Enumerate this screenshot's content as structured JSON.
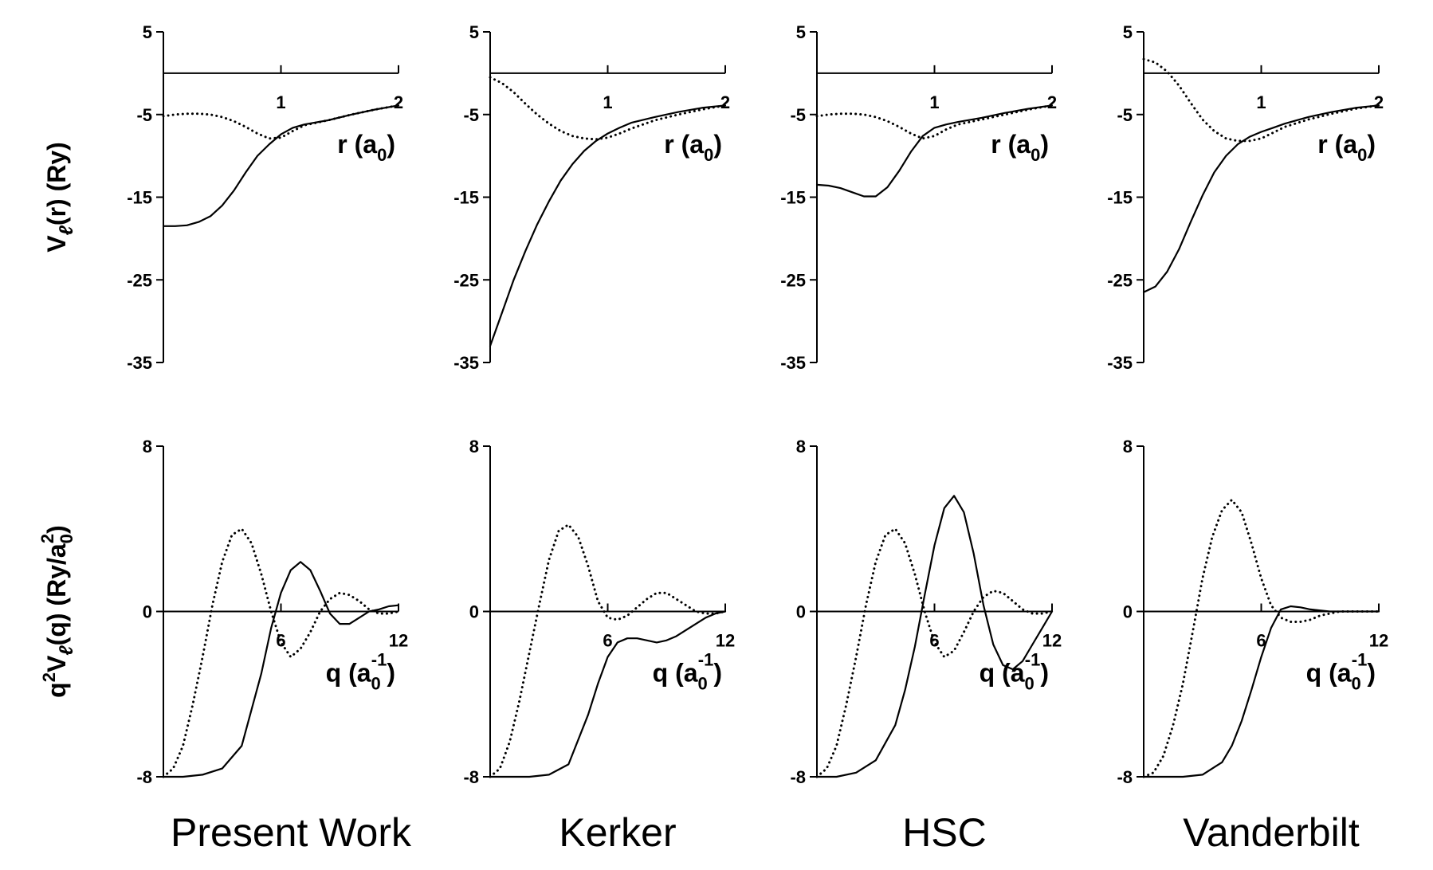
{
  "chart_data": [
    {
      "type": "line",
      "title": "Present Work",
      "top": {
        "xlim": [
          0,
          2
        ],
        "ylim": [
          -35,
          5
        ],
        "xticks": [
          "1",
          "2"
        ],
        "yticks": [
          "5",
          "-5",
          "-15",
          "-25",
          "-35"
        ],
        "xlabel": {
          "main": "r (a",
          "sub": "0",
          "close": ")"
        },
        "ylabel": {
          "p1": "V",
          "sub": "ℓ",
          "p2": "(r) (Ry)"
        },
        "series": [
          {
            "style": "solid",
            "x": [
              0,
              0.1,
              0.2,
              0.3,
              0.4,
              0.5,
              0.6,
              0.7,
              0.8,
              0.9,
              1.0,
              1.1,
              1.2,
              1.4,
              1.6,
              1.8,
              2.0
            ],
            "y": [
              -18.5,
              -18.5,
              -18.4,
              -18.0,
              -17.3,
              -16.0,
              -14.2,
              -12.0,
              -10.0,
              -8.6,
              -7.4,
              -6.6,
              -6.2,
              -5.7,
              -5.0,
              -4.4,
              -3.9
            ]
          },
          {
            "style": "dotted",
            "x": [
              0,
              0.1,
              0.2,
              0.3,
              0.4,
              0.5,
              0.6,
              0.7,
              0.8,
              0.9,
              1.0,
              1.1,
              1.2,
              1.4,
              1.6,
              1.8,
              2.0
            ],
            "y": [
              -5.2,
              -5.0,
              -4.9,
              -4.9,
              -5.0,
              -5.3,
              -5.8,
              -6.5,
              -7.3,
              -7.9,
              -7.8,
              -7.0,
              -6.3,
              -5.7,
              -5.0,
              -4.4,
              -3.9
            ]
          }
        ]
      },
      "bottom": {
        "xlim": [
          0,
          12
        ],
        "ylim": [
          -8,
          8
        ],
        "xticks": [
          "6",
          "12"
        ],
        "yticks": [
          "8",
          "0",
          "-8"
        ],
        "xlabel": {
          "main": "q (a",
          "sub": "0",
          "sup": "-1",
          "close": ")"
        },
        "ylabel": {
          "p1": "q",
          "sup1": "2",
          "p2": "V",
          "sub1": "ℓ",
          "p3": "(q)  (Ry/a",
          "sub2": "0",
          "sup2": "2",
          "p4": ")"
        },
        "series": [
          {
            "style": "solid",
            "x": [
              0,
              1,
              2,
              3,
              4,
              5,
              5.5,
              6,
              6.5,
              7,
              7.5,
              8,
              8.5,
              9,
              9.5,
              10,
              10.5,
              11,
              11.5,
              12
            ],
            "y": [
              -8.0,
              -8.0,
              -7.9,
              -7.6,
              -6.5,
              -3.0,
              -0.8,
              0.9,
              2.0,
              2.4,
              2.0,
              1.0,
              -0.1,
              -0.6,
              -0.6,
              -0.3,
              0,
              0.1,
              0.25,
              0.3
            ]
          },
          {
            "style": "dotted",
            "x": [
              0,
              0.5,
              1,
              1.5,
              2,
              2.5,
              3,
              3.5,
              4,
              4.5,
              5,
              5.5,
              6,
              6.5,
              7,
              7.5,
              8,
              8.5,
              9,
              9.5,
              10,
              10.5,
              11,
              11.5,
              12
            ],
            "y": [
              -8.0,
              -7.6,
              -6.5,
              -4.5,
              -2.2,
              0.3,
              2.4,
              3.7,
              4.0,
              3.3,
              1.8,
              0,
              -1.5,
              -2.2,
              -1.8,
              -1.0,
              0,
              0.6,
              0.9,
              0.8,
              0.5,
              0.1,
              -0.1,
              -0.1,
              0
            ]
          }
        ]
      }
    },
    {
      "type": "line",
      "title": "Kerker",
      "top": {
        "xlim": [
          0,
          2
        ],
        "ylim": [
          -35,
          5
        ],
        "xticks": [
          "1",
          "2"
        ],
        "yticks": [
          "5",
          "-5",
          "-15",
          "-25",
          "-35"
        ],
        "xlabel": {
          "main": "r (a",
          "sub": "0",
          "close": ")"
        },
        "series": [
          {
            "style": "solid",
            "x": [
              0,
              0.1,
              0.2,
              0.3,
              0.4,
              0.5,
              0.6,
              0.7,
              0.8,
              0.9,
              1.0,
              1.1,
              1.2,
              1.4,
              1.6,
              1.8,
              2.0
            ],
            "y": [
              -33.0,
              -29.0,
              -25.0,
              -21.5,
              -18.3,
              -15.5,
              -13.0,
              -11.0,
              -9.4,
              -8.2,
              -7.3,
              -6.6,
              -6.0,
              -5.3,
              -4.7,
              -4.2,
              -3.9
            ]
          },
          {
            "style": "dotted",
            "x": [
              0,
              0.1,
              0.2,
              0.3,
              0.4,
              0.5,
              0.6,
              0.7,
              0.8,
              0.9,
              1.0,
              1.1,
              1.2,
              1.4,
              1.6,
              1.8,
              2.0
            ],
            "y": [
              -0.5,
              -1.2,
              -2.3,
              -3.7,
              -5.0,
              -6.1,
              -7.0,
              -7.6,
              -7.9,
              -8.0,
              -7.8,
              -7.3,
              -6.7,
              -5.7,
              -5.0,
              -4.4,
              -3.9
            ]
          }
        ]
      },
      "bottom": {
        "xlim": [
          0,
          12
        ],
        "ylim": [
          -8,
          8
        ],
        "xticks": [
          "6",
          "12"
        ],
        "yticks": [
          "8",
          "0",
          "-8"
        ],
        "xlabel": {
          "main": "q (a",
          "sub": "0",
          "sup": "-1",
          "close": ")"
        },
        "series": [
          {
            "style": "solid",
            "x": [
              0,
              1,
              2,
              3,
              4,
              5,
              5.5,
              6,
              6.5,
              7,
              7.5,
              8,
              8.5,
              9,
              9.5,
              10,
              10.5,
              11,
              11.5,
              12
            ],
            "y": [
              -8.0,
              -8.0,
              -8.0,
              -7.9,
              -7.4,
              -5.0,
              -3.5,
              -2.2,
              -1.5,
              -1.3,
              -1.3,
              -1.4,
              -1.5,
              -1.4,
              -1.2,
              -0.9,
              -0.6,
              -0.3,
              -0.1,
              0
            ]
          },
          {
            "style": "dotted",
            "x": [
              0,
              0.5,
              1,
              1.5,
              2,
              2.5,
              3,
              3.5,
              4,
              4.5,
              5,
              5.5,
              6,
              6.5,
              7,
              7.5,
              8,
              8.5,
              9,
              9.5,
              10,
              10.5,
              11,
              11.5,
              12
            ],
            "y": [
              -8.0,
              -7.6,
              -6.3,
              -4.3,
              -2.0,
              0.3,
              2.5,
              3.9,
              4.2,
              3.6,
              2.2,
              0.5,
              -0.3,
              -0.4,
              -0.2,
              0.2,
              0.6,
              0.9,
              0.9,
              0.6,
              0.3,
              0,
              -0.1,
              -0.1,
              0
            ]
          }
        ]
      }
    },
    {
      "type": "line",
      "title": "HSC",
      "top": {
        "xlim": [
          0,
          2
        ],
        "ylim": [
          -35,
          5
        ],
        "xticks": [
          "1",
          "2"
        ],
        "yticks": [
          "5",
          "-5",
          "-15",
          "-25",
          "-35"
        ],
        "xlabel": {
          "main": "r (a",
          "sub": "0",
          "close": ")"
        },
        "series": [
          {
            "style": "solid",
            "x": [
              0,
              0.1,
              0.2,
              0.3,
              0.4,
              0.5,
              0.6,
              0.7,
              0.8,
              0.9,
              1.0,
              1.1,
              1.2,
              1.4,
              1.6,
              1.8,
              2.0
            ],
            "y": [
              -13.5,
              -13.6,
              -13.9,
              -14.4,
              -14.9,
              -14.9,
              -13.8,
              -11.8,
              -9.5,
              -7.6,
              -6.6,
              -6.2,
              -5.9,
              -5.4,
              -4.8,
              -4.3,
              -3.9
            ]
          },
          {
            "style": "dotted",
            "x": [
              0,
              0.1,
              0.2,
              0.3,
              0.4,
              0.5,
              0.6,
              0.7,
              0.8,
              0.9,
              1.0,
              1.1,
              1.2,
              1.4,
              1.6,
              1.8,
              2.0
            ],
            "y": [
              -5.2,
              -5.0,
              -4.9,
              -4.9,
              -5.0,
              -5.3,
              -5.8,
              -6.5,
              -7.3,
              -7.9,
              -7.6,
              -6.8,
              -6.2,
              -5.6,
              -5.0,
              -4.4,
              -3.9
            ]
          }
        ]
      },
      "bottom": {
        "xlim": [
          0,
          12
        ],
        "ylim": [
          -8,
          8
        ],
        "xticks": [
          "6",
          "12"
        ],
        "yticks": [
          "8",
          "0",
          "-8"
        ],
        "xlabel": {
          "main": "q (a",
          "sub": "0",
          "sup": "-1",
          "close": ")"
        },
        "series": [
          {
            "style": "solid",
            "x": [
              0,
              1,
              2,
              3,
              4,
              4.5,
              5,
              5.5,
              6,
              6.5,
              7,
              7.5,
              8,
              8.5,
              9,
              9.5,
              10,
              10.5,
              11,
              11.5,
              12
            ],
            "y": [
              -8.0,
              -8.0,
              -7.8,
              -7.2,
              -5.5,
              -3.8,
              -1.7,
              0.8,
              3.2,
              5.0,
              5.6,
              4.8,
              2.8,
              0.3,
              -1.6,
              -2.6,
              -2.8,
              -2.4,
              -1.6,
              -0.8,
              0
            ]
          },
          {
            "style": "dotted",
            "x": [
              0,
              0.5,
              1,
              1.5,
              2,
              2.5,
              3,
              3.5,
              4,
              4.5,
              5,
              5.5,
              6,
              6.5,
              7,
              7.5,
              8,
              8.5,
              9,
              9.5,
              10,
              10.5,
              11,
              11.5,
              12
            ],
            "y": [
              -8.0,
              -7.6,
              -6.5,
              -4.5,
              -2.2,
              0.3,
              2.4,
              3.7,
              4.0,
              3.3,
              1.8,
              0,
              -1.5,
              -2.2,
              -1.9,
              -1.0,
              0,
              0.7,
              1.0,
              0.9,
              0.5,
              0.1,
              -0.1,
              -0.1,
              0
            ]
          }
        ]
      }
    },
    {
      "type": "line",
      "title": "Vanderbilt",
      "top": {
        "xlim": [
          0,
          2
        ],
        "ylim": [
          -35,
          5
        ],
        "xticks": [
          "1",
          "2"
        ],
        "yticks": [
          "5",
          "-5",
          "-15",
          "-25",
          "-35"
        ],
        "xlabel": {
          "main": "r (a",
          "sub": "0",
          "close": ")"
        },
        "series": [
          {
            "style": "solid",
            "x": [
              0,
              0.1,
              0.2,
              0.3,
              0.4,
              0.5,
              0.6,
              0.7,
              0.8,
              0.9,
              1.0,
              1.1,
              1.2,
              1.4,
              1.6,
              1.8,
              2.0
            ],
            "y": [
              -26.5,
              -25.8,
              -24.0,
              -21.3,
              -18.0,
              -14.8,
              -12.0,
              -10.0,
              -8.6,
              -7.7,
              -7.1,
              -6.6,
              -6.1,
              -5.3,
              -4.7,
              -4.2,
              -3.9
            ]
          },
          {
            "style": "dotted",
            "x": [
              0,
              0.1,
              0.2,
              0.3,
              0.4,
              0.5,
              0.6,
              0.7,
              0.8,
              0.9,
              1.0,
              1.1,
              1.2,
              1.4,
              1.6,
              1.8,
              2.0
            ],
            "y": [
              1.7,
              1.3,
              0.2,
              -1.5,
              -3.6,
              -5.6,
              -7.0,
              -7.9,
              -8.2,
              -8.2,
              -7.9,
              -7.2,
              -6.5,
              -5.6,
              -4.9,
              -4.3,
              -3.9
            ]
          }
        ]
      },
      "bottom": {
        "xlim": [
          0,
          12
        ],
        "ylim": [
          -8,
          8
        ],
        "xticks": [
          "6",
          "12"
        ],
        "yticks": [
          "8",
          "0",
          "-8"
        ],
        "xlabel": {
          "main": "q (a",
          "sub": "0",
          "sup": "-1",
          "close": ")"
        },
        "series": [
          {
            "style": "solid",
            "x": [
              0,
              1,
              2,
              3,
              4,
              4.5,
              5,
              5.5,
              6,
              6.5,
              7,
              7.5,
              8,
              8.5,
              9,
              9.5,
              10,
              11,
              12
            ],
            "y": [
              -8.0,
              -8.0,
              -8.0,
              -7.9,
              -7.3,
              -6.5,
              -5.3,
              -3.8,
              -2.2,
              -0.8,
              0.1,
              0.25,
              0.2,
              0.1,
              0.05,
              0,
              0,
              0,
              0
            ]
          },
          {
            "style": "dotted",
            "x": [
              0,
              0.5,
              1,
              1.5,
              2,
              2.5,
              3,
              3.5,
              4,
              4.5,
              5,
              5.5,
              6,
              6.5,
              7,
              7.5,
              8,
              8.5,
              9,
              9.5,
              10,
              11,
              12
            ],
            "y": [
              -8.0,
              -7.8,
              -7.0,
              -5.5,
              -3.5,
              -1.0,
              1.6,
              3.6,
              4.9,
              5.4,
              4.8,
              3.3,
              1.6,
              0.3,
              -0.3,
              -0.5,
              -0.5,
              -0.4,
              -0.2,
              -0.1,
              0,
              0,
              0
            ]
          }
        ]
      }
    }
  ]
}
